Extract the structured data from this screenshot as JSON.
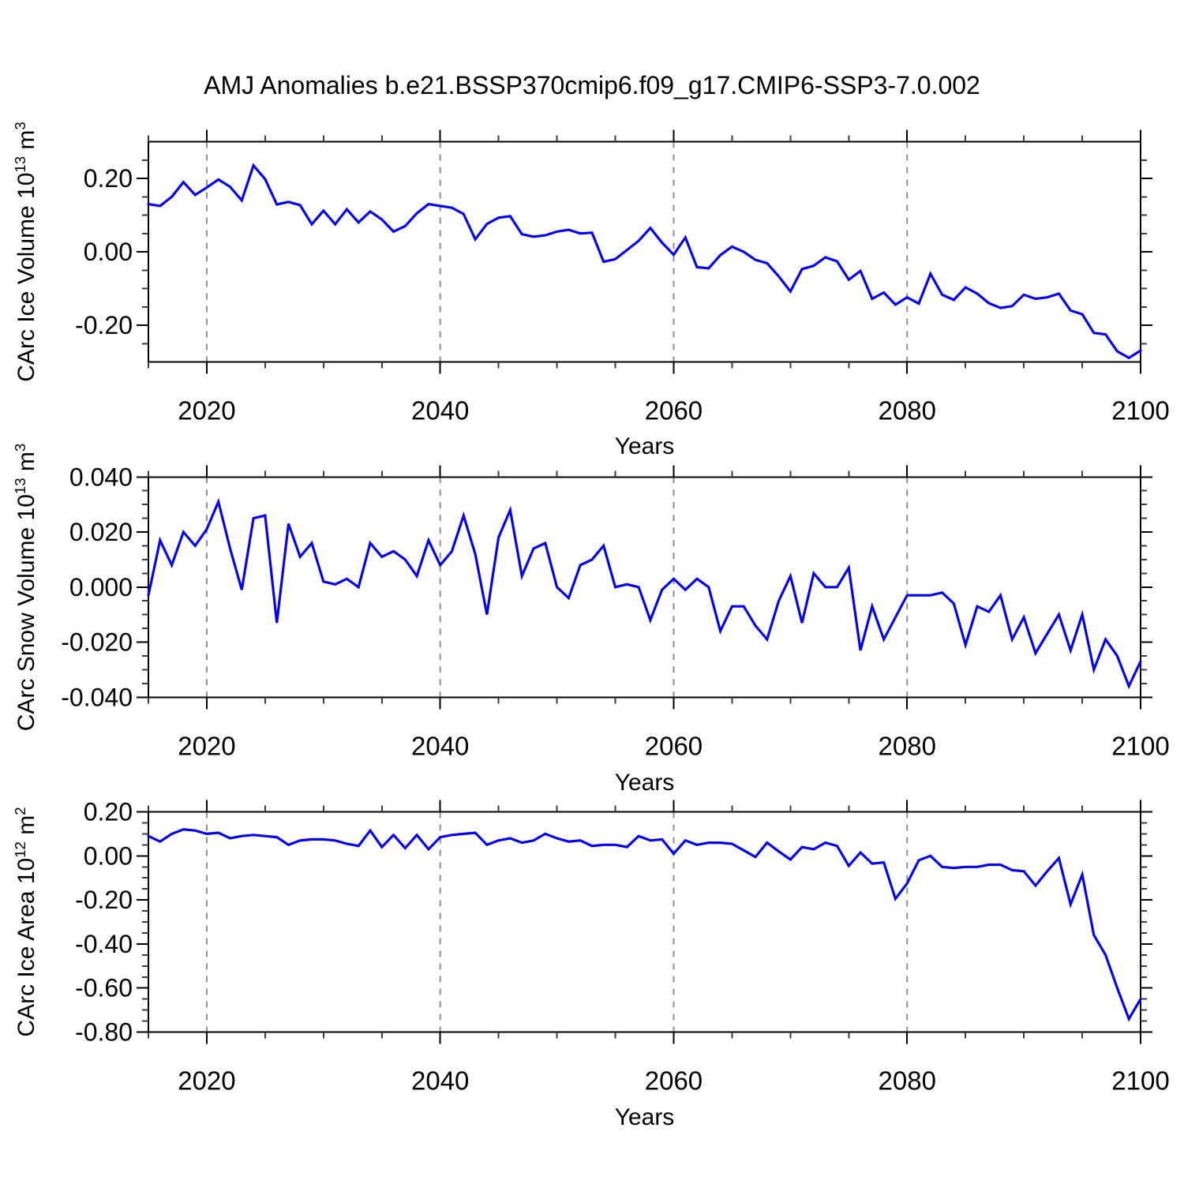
{
  "title": "AMJ Anomalies b.e21.BSSP370cmip6.f09_g17.CMIP6-SSP3-7.0.002",
  "xlabel": "Years",
  "line_color": "#0404f0",
  "grid_color": "#909090",
  "panels": [
    {
      "name": "ice-volume",
      "ylabel_full": "CArc Ice Volume 10^13 m^3",
      "ylabel_prefix": "CArc Ice Volume 10",
      "ylabel_exp": "13",
      "ylabel_mid": " m",
      "ylabel_unit_exp": "3"
    },
    {
      "name": "snow-volume",
      "ylabel_full": "CArc Snow Volume 10^13 m^3",
      "ylabel_prefix": "CArc Snow Volume 10",
      "ylabel_exp": "13",
      "ylabel_mid": " m",
      "ylabel_unit_exp": "3"
    },
    {
      "name": "ice-area",
      "ylabel_full": "CArc Ice Area 10^12 m^2",
      "ylabel_prefix": "CArc Ice Area 10",
      "ylabel_exp": "12",
      "ylabel_mid": " m",
      "ylabel_unit_exp": "2"
    }
  ],
  "chart_data": [
    {
      "type": "line",
      "name": "ice-volume",
      "title": "CArc Ice Volume anomalies",
      "xlabel": "Years",
      "ylabel": "CArc Ice Volume 10^13 m^3",
      "x_range": [
        2015,
        2100
      ],
      "x_step": 1,
      "xticks": [
        2020,
        2040,
        2060,
        2080,
        2100
      ],
      "x_gridlines": [
        2020,
        2040,
        2060,
        2080
      ],
      "xtick_minor_step": 5,
      "ylim": [
        -0.3,
        0.3
      ],
      "ytick_values": [
        0.2,
        0.0,
        -0.2
      ],
      "ytick_labels": [
        "0.20",
        "0.00",
        "-0.20"
      ],
      "ytick_minor": 0.05,
      "grid": "vertical-dashed",
      "legend": "none",
      "values": [
        0.13,
        0.125,
        0.15,
        0.19,
        0.155,
        0.175,
        0.197,
        0.177,
        0.14,
        0.235,
        0.198,
        0.129,
        0.136,
        0.127,
        0.075,
        0.112,
        0.075,
        0.116,
        0.08,
        0.11,
        0.088,
        0.055,
        0.07,
        0.105,
        0.13,
        0.125,
        0.12,
        0.103,
        0.034,
        0.076,
        0.093,
        0.097,
        0.048,
        0.041,
        0.045,
        0.055,
        0.06,
        0.05,
        0.052,
        -0.027,
        -0.02,
        0.005,
        0.03,
        0.065,
        0.025,
        -0.008,
        0.039,
        -0.042,
        -0.045,
        -0.009,
        0.014,
        0.0,
        -0.022,
        -0.031,
        -0.067,
        -0.108,
        -0.047,
        -0.038,
        -0.015,
        -0.026,
        -0.076,
        -0.052,
        -0.128,
        -0.111,
        -0.144,
        -0.124,
        -0.141,
        -0.06,
        -0.117,
        -0.131,
        -0.097,
        -0.114,
        -0.14,
        -0.153,
        -0.148,
        -0.117,
        -0.128,
        -0.124,
        -0.114,
        -0.16,
        -0.17,
        -0.221,
        -0.225,
        -0.271,
        -0.289,
        -0.269
      ]
    },
    {
      "type": "line",
      "name": "snow-volume",
      "title": "CArc Snow Volume anomalies",
      "xlabel": "Years",
      "ylabel": "CArc Snow Volume 10^13 m^3",
      "x_range": [
        2015,
        2100
      ],
      "x_step": 1,
      "xticks": [
        2020,
        2040,
        2060,
        2080,
        2100
      ],
      "x_gridlines": [
        2020,
        2040,
        2060,
        2080
      ],
      "xtick_minor_step": 5,
      "ylim": [
        -0.04,
        0.04
      ],
      "ytick_values": [
        0.04,
        0.02,
        0.0,
        -0.02,
        -0.04
      ],
      "ytick_labels": [
        "0.040",
        "0.020",
        "0.000",
        "-0.020",
        "-0.040"
      ],
      "ytick_minor": 0.005,
      "grid": "vertical-dashed",
      "legend": "none",
      "values": [
        -0.003,
        0.017,
        0.008,
        0.02,
        0.015,
        0.021,
        0.031,
        0.014,
        -0.001,
        0.025,
        0.026,
        -0.013,
        0.023,
        0.011,
        0.016,
        0.002,
        0.001,
        0.003,
        0.0,
        0.016,
        0.011,
        0.013,
        0.01,
        0.004,
        0.017,
        0.008,
        0.013,
        0.026,
        0.012,
        -0.01,
        0.018,
        0.028,
        0.004,
        0.014,
        0.016,
        0.0,
        -0.004,
        0.008,
        0.01,
        0.015,
        0.0,
        0.001,
        0.0,
        -0.012,
        -0.001,
        0.003,
        -0.001,
        0.003,
        0.0,
        -0.016,
        -0.007,
        -0.007,
        -0.014,
        -0.019,
        -0.005,
        0.004,
        -0.013,
        0.005,
        0.0,
        0.0,
        0.007,
        -0.023,
        -0.007,
        -0.019,
        -0.011,
        -0.003,
        -0.003,
        -0.003,
        -0.002,
        -0.006,
        -0.021,
        -0.007,
        -0.009,
        -0.003,
        -0.019,
        -0.011,
        -0.024,
        -0.017,
        -0.01,
        -0.023,
        -0.01,
        -0.03,
        -0.019,
        -0.025,
        -0.036,
        -0.027
      ]
    },
    {
      "type": "line",
      "name": "ice-area",
      "title": "CArc Ice Area anomalies",
      "xlabel": "Years",
      "ylabel": "CArc Ice Area 10^12 m^2",
      "x_range": [
        2015,
        2100
      ],
      "x_step": 1,
      "xticks": [
        2020,
        2040,
        2060,
        2080,
        2100
      ],
      "x_gridlines": [
        2020,
        2040,
        2060,
        2080
      ],
      "xtick_minor_step": 5,
      "ylim": [
        -0.8,
        0.2
      ],
      "ytick_values": [
        0.2,
        0.0,
        -0.2,
        -0.4,
        -0.6,
        -0.8
      ],
      "ytick_labels": [
        "0.20",
        "0.00",
        "-0.20",
        "-0.40",
        "-0.60",
        "-0.80"
      ],
      "ytick_minor": 0.05,
      "grid": "vertical-dashed",
      "legend": "none",
      "values": [
        0.09,
        0.065,
        0.1,
        0.12,
        0.115,
        0.1,
        0.105,
        0.08,
        0.09,
        0.095,
        0.09,
        0.085,
        0.05,
        0.07,
        0.075,
        0.075,
        0.07,
        0.055,
        0.045,
        0.115,
        0.04,
        0.095,
        0.035,
        0.095,
        0.03,
        0.085,
        0.095,
        0.1,
        0.105,
        0.05,
        0.07,
        0.08,
        0.06,
        0.07,
        0.1,
        0.08,
        0.065,
        0.07,
        0.045,
        0.05,
        0.05,
        0.04,
        0.09,
        0.07,
        0.075,
        0.01,
        0.07,
        0.05,
        0.06,
        0.06,
        0.055,
        0.025,
        -0.005,
        0.06,
        0.02,
        -0.017,
        0.04,
        0.03,
        0.06,
        0.045,
        -0.045,
        0.015,
        -0.035,
        -0.03,
        -0.195,
        -0.125,
        -0.02,
        0.0,
        -0.05,
        -0.055,
        -0.05,
        -0.05,
        -0.04,
        -0.04,
        -0.065,
        -0.07,
        -0.135,
        -0.07,
        -0.01,
        -0.22,
        -0.085,
        -0.36,
        -0.45,
        -0.6,
        -0.74,
        -0.65
      ]
    }
  ]
}
